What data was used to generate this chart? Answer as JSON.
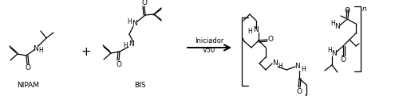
{
  "bg_color": "#ffffff",
  "arrow_text_line1": "Iniciador",
  "arrow_text_line2": "V50",
  "label_nipam": "NIPAM",
  "label_bis": "BIS",
  "figsize": [
    5.0,
    1.21
  ],
  "dpi": 100
}
